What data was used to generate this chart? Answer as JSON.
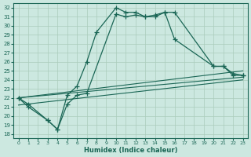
{
  "xlabel": "Humidex (Indice chaleur)",
  "background_color": "#cce8e0",
  "grid_color": "#aaccbb",
  "line_color": "#1a6655",
  "xlim": [
    -0.5,
    23.5
  ],
  "ylim": [
    17.5,
    32.5
  ],
  "xticks": [
    0,
    1,
    2,
    3,
    4,
    5,
    6,
    7,
    8,
    9,
    10,
    11,
    12,
    13,
    14,
    15,
    16,
    17,
    18,
    19,
    20,
    21,
    22,
    23
  ],
  "yticks": [
    18,
    19,
    20,
    21,
    22,
    23,
    24,
    25,
    26,
    27,
    28,
    29,
    30,
    31,
    32
  ],
  "curve1_x": [
    0,
    1,
    3,
    4,
    5,
    6,
    7,
    8,
    10,
    11,
    12,
    13,
    14,
    15,
    16,
    20,
    21,
    22,
    23
  ],
  "curve1_y": [
    22.0,
    21.3,
    19.5,
    18.5,
    22.3,
    23.3,
    26.0,
    29.3,
    32.0,
    31.5,
    31.5,
    31.0,
    31.2,
    31.5,
    28.5,
    25.5,
    25.5,
    24.7,
    24.5
  ],
  "curve2_x": [
    0,
    1,
    3,
    4,
    5,
    6,
    7,
    10,
    11,
    12,
    13,
    14,
    15,
    16,
    20,
    21,
    22,
    23
  ],
  "curve2_y": [
    22.0,
    21.0,
    19.5,
    18.5,
    21.3,
    22.3,
    22.5,
    31.3,
    31.0,
    31.2,
    31.0,
    31.0,
    31.5,
    31.5,
    25.5,
    25.5,
    24.5,
    24.5
  ],
  "line1_x": [
    0,
    23
  ],
  "line1_y": [
    22.0,
    24.3
  ],
  "line2_x": [
    0,
    23
  ],
  "line2_y": [
    22.0,
    25.0
  ],
  "line3_x": [
    0,
    23
  ],
  "line3_y": [
    21.2,
    24.0
  ]
}
